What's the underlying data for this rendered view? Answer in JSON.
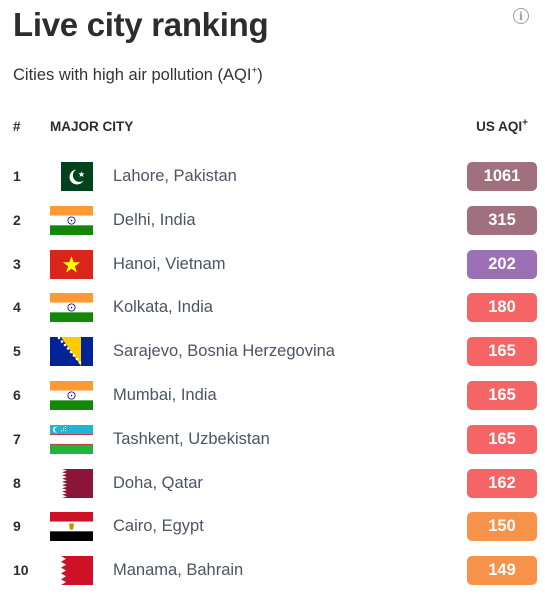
{
  "title": "Live city ranking",
  "subtitle": "Cities with high air pollution (AQI",
  "subtitle_sup": "+",
  "subtitle_end": ")",
  "info_icon": "info-icon",
  "header": {
    "rank": "#",
    "city": "MAJOR CITY",
    "aqi": "US AQI",
    "aqi_sup": "+"
  },
  "colors": {
    "hazardous": "#a0707e",
    "very_unhealthy": "#9b70b4",
    "unhealthy": "#f56565",
    "sensitive": "#f6924a"
  },
  "rows": [
    {
      "rank": "1",
      "city": "Lahore, Pakistan",
      "aqi": "1061",
      "flag": "pakistan-flag-icon",
      "color": "#a0707e"
    },
    {
      "rank": "2",
      "city": "Delhi, India",
      "aqi": "315",
      "flag": "india-flag-icon",
      "color": "#a0707e"
    },
    {
      "rank": "3",
      "city": "Hanoi, Vietnam",
      "aqi": "202",
      "flag": "vietnam-flag-icon",
      "color": "#9b70b4"
    },
    {
      "rank": "4",
      "city": "Kolkata, India",
      "aqi": "180",
      "flag": "india-flag-icon",
      "color": "#f56565"
    },
    {
      "rank": "5",
      "city": "Sarajevo, Bosnia Herzegovina",
      "aqi": "165",
      "flag": "bosnia-flag-icon",
      "color": "#f56565"
    },
    {
      "rank": "6",
      "city": "Mumbai, India",
      "aqi": "165",
      "flag": "india-flag-icon",
      "color": "#f56565"
    },
    {
      "rank": "7",
      "city": "Tashkent, Uzbekistan",
      "aqi": "165",
      "flag": "uzbekistan-flag-icon",
      "color": "#f56565"
    },
    {
      "rank": "8",
      "city": "Doha, Qatar",
      "aqi": "162",
      "flag": "qatar-flag-icon",
      "color": "#f56565"
    },
    {
      "rank": "9",
      "city": "Cairo, Egypt",
      "aqi": "150",
      "flag": "egypt-flag-icon",
      "color": "#f6924a"
    },
    {
      "rank": "10",
      "city": "Manama, Bahrain",
      "aqi": "149",
      "flag": "bahrain-flag-icon",
      "color": "#f6924a"
    }
  ]
}
